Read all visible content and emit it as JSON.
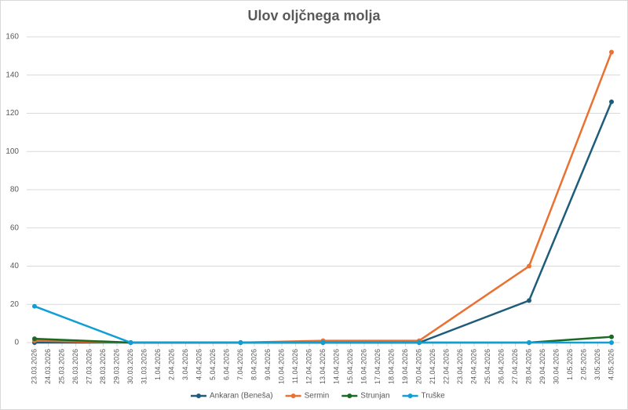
{
  "chart_data": {
    "type": "line",
    "title": "Ulov oljčnega molja",
    "x": [
      "23.03.2026",
      "30.03.2026",
      "7.04.2026",
      "13.04.2026",
      "20.04.2026",
      "28.04.2026",
      "4.05.2026"
    ],
    "xticks": [
      "23.03.2026",
      "24.03.2026",
      "25.03.2026",
      "26.03.2026",
      "27.03.2026",
      "28.03.2026",
      "29.03.2026",
      "30.03.2026",
      "31.03.2026",
      "1.04.2026",
      "2.04.2026",
      "3.04.2026",
      "4.04.2026",
      "5.04.2026",
      "6.04.2026",
      "7.04.2026",
      "8.04.2026",
      "9.04.2026",
      "10.04.2026",
      "11.04.2026",
      "12.04.2026",
      "13.04.2026",
      "14.04.2026",
      "15.04.2026",
      "16.04.2026",
      "17.04.2026",
      "18.04.2026",
      "19.04.2026",
      "20.04.2026",
      "21.04.2026",
      "22.04.2026",
      "23.04.2026",
      "24.04.2026",
      "25.04.2026",
      "26.04.2026",
      "27.04.2026",
      "28.04.2026",
      "29.04.2026",
      "30.04.2026",
      "1.05.2026",
      "2.05.2026",
      "3.05.2026",
      "4.05.2026"
    ],
    "series": [
      {
        "name": "Ankaran (Beneša)",
        "color": "#1f5c7a",
        "values": [
          0,
          0,
          0,
          0,
          0,
          22,
          126
        ]
      },
      {
        "name": "Sermin",
        "color": "#e97132",
        "values": [
          1,
          0,
          0,
          1,
          1,
          40,
          152
        ]
      },
      {
        "name": "Strunjan",
        "color": "#196b24",
        "values": [
          2,
          0,
          0,
          0,
          0,
          0,
          3
        ]
      },
      {
        "name": "Truške",
        "color": "#0f9ed5",
        "values": [
          19,
          0,
          0,
          0,
          0,
          0,
          0
        ]
      }
    ],
    "ylim": [
      0,
      160
    ],
    "yticks": [
      0,
      20,
      40,
      60,
      80,
      100,
      120,
      140,
      160
    ],
    "grid": true,
    "legend": "bottom"
  }
}
